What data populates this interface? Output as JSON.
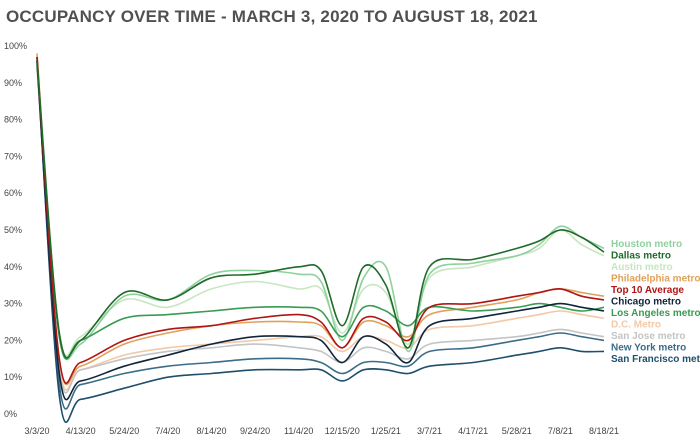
{
  "chart_data": {
    "type": "line",
    "title": "OCCUPANCY OVER TIME - MARCH 3, 2020 TO AUGUST 18, 2021",
    "xlabel": "",
    "ylabel": "",
    "x_dates": [
      "2020-03-03",
      "2020-03-24",
      "2020-04-13",
      "2020-05-24",
      "2020-07-04",
      "2020-08-14",
      "2020-09-24",
      "2020-11-04",
      "2020-11-25",
      "2020-12-15",
      "2021-01-04",
      "2021-01-25",
      "2021-02-15",
      "2021-03-07",
      "2021-04-17",
      "2021-05-28",
      "2021-06-18",
      "2021-07-08",
      "2021-07-28",
      "2021-08-18"
    ],
    "x_ticks": [
      {
        "date": "2020-03-03",
        "label": "3/3/20"
      },
      {
        "date": "2020-04-13",
        "label": "4/13/20"
      },
      {
        "date": "2020-05-24",
        "label": "5/24/20"
      },
      {
        "date": "2020-07-04",
        "label": "7/4/20"
      },
      {
        "date": "2020-08-14",
        "label": "8/14/20"
      },
      {
        "date": "2020-09-24",
        "label": "9/24/20"
      },
      {
        "date": "2020-11-04",
        "label": "11/4/20"
      },
      {
        "date": "2020-12-15",
        "label": "12/15/20"
      },
      {
        "date": "2021-01-25",
        "label": "1/25/21"
      },
      {
        "date": "2021-03-07",
        "label": "3/7/21"
      },
      {
        "date": "2021-04-17",
        "label": "4/17/21"
      },
      {
        "date": "2021-05-28",
        "label": "5/28/21"
      },
      {
        "date": "2021-07-08",
        "label": "7/8/21"
      },
      {
        "date": "2021-08-18",
        "label": "8/18/21"
      }
    ],
    "y_ticks": [
      "0%",
      "10%",
      "20%",
      "30%",
      "40%",
      "50%",
      "60%",
      "70%",
      "80%",
      "90%",
      "100%"
    ],
    "ylim": [
      0,
      100
    ],
    "xlim": [
      "2020-03-03",
      "2021-08-18"
    ],
    "grid": false,
    "legend_position": "right",
    "series": [
      {
        "name": "Houston metro",
        "color": "#8fd19e",
        "values": [
          97,
          22,
          19,
          32,
          31,
          38,
          39,
          38,
          36,
          20,
          37,
          40,
          17,
          38,
          41,
          43,
          46,
          51,
          48,
          45
        ]
      },
      {
        "name": "Dallas metro",
        "color": "#1f6b2a",
        "values": [
          96,
          22,
          20,
          33,
          31,
          37,
          38,
          40,
          39,
          24,
          40,
          35,
          18,
          40,
          42,
          45,
          47,
          50,
          48,
          44
        ]
      },
      {
        "name": "Austin metro",
        "color": "#c8e6c0",
        "values": [
          96,
          22,
          21,
          31,
          29,
          34,
          36,
          34,
          34,
          22,
          34,
          33,
          19,
          37,
          40,
          43,
          45,
          50,
          46,
          43
        ]
      },
      {
        "name": "Philadelphia metro",
        "color": "#e0a25a",
        "values": [
          98,
          15,
          13,
          19,
          22,
          24,
          25,
          25,
          24,
          18,
          25,
          24,
          21,
          27,
          29,
          31,
          33,
          34,
          33,
          32
        ]
      },
      {
        "name": "Top 10 Average",
        "color": "#b01515",
        "values": [
          97,
          15,
          14,
          20,
          23,
          24,
          26,
          27,
          25,
          18,
          26,
          25,
          20,
          29,
          30,
          32,
          33,
          34,
          32,
          31
        ]
      },
      {
        "name": "Chicago metro",
        "color": "#10243a",
        "values": [
          96,
          11,
          9,
          13,
          16,
          19,
          21,
          21,
          20,
          14,
          21,
          19,
          14,
          24,
          26,
          28,
          29,
          30,
          29,
          28
        ]
      },
      {
        "name": "Los Angeles metro",
        "color": "#3a9b52",
        "values": [
          95,
          21,
          20,
          26,
          27,
          28,
          29,
          29,
          28,
          21,
          29,
          28,
          24,
          29,
          28,
          29,
          30,
          29,
          28,
          29
        ]
      },
      {
        "name": "D.C. Metro",
        "color": "#f2c9a8",
        "values": [
          94,
          13,
          12,
          16,
          18,
          19,
          20,
          21,
          21,
          17,
          21,
          20,
          18,
          23,
          24,
          26,
          27,
          28,
          27,
          26
        ]
      },
      {
        "name": "San Jose metro",
        "color": "#c4c4c4",
        "values": [
          95,
          12,
          12,
          15,
          17,
          18,
          19,
          18,
          17,
          14,
          18,
          17,
          15,
          19,
          20,
          21,
          22,
          23,
          22,
          21
        ]
      },
      {
        "name": "New York metro",
        "color": "#3b6d88",
        "values": [
          96,
          8,
          8,
          11,
          13,
          14,
          15,
          15,
          14,
          11,
          14,
          14,
          13,
          17,
          18,
          20,
          21,
          22,
          21,
          20
        ]
      },
      {
        "name": "San Francisco metro",
        "color": "#1e4f6d",
        "values": [
          97,
          5,
          4,
          7,
          10,
          11,
          12,
          12,
          12,
          9,
          12,
          12,
          11,
          13,
          14,
          16,
          17,
          18,
          17,
          17
        ]
      }
    ]
  }
}
